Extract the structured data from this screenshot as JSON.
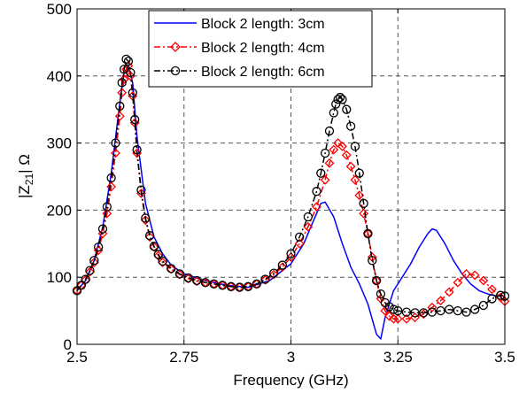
{
  "chart_data": {
    "type": "line",
    "xlabel": "Frequency (GHz)",
    "ylabel": "|Z21| Ω",
    "ylabel_main": "|Z",
    "ylabel_sub": "21",
    "ylabel_tail": "| Ω",
    "xlim": [
      2.5,
      3.5
    ],
    "ylim": [
      0,
      500
    ],
    "x_ticks": [
      2.5,
      2.75,
      3,
      3.25,
      3.5
    ],
    "x_tick_labels": [
      "2.5",
      "2.75",
      "3",
      "3.25",
      "3.5"
    ],
    "y_ticks": [
      0,
      100,
      200,
      300,
      400,
      500
    ],
    "y_tick_labels": [
      "0",
      "100",
      "200",
      "300",
      "400",
      "500"
    ],
    "grid": true,
    "legend_position": "top-center",
    "series": [
      {
        "name": "Block 2 length: 3cm",
        "color": "#0000ff",
        "line_style": "solid",
        "marker": "none",
        "x": [
          2.5,
          2.52,
          2.54,
          2.56,
          2.58,
          2.6,
          2.61,
          2.62,
          2.63,
          2.64,
          2.66,
          2.68,
          2.7,
          2.72,
          2.75,
          2.8,
          2.85,
          2.9,
          2.95,
          3.0,
          3.03,
          3.05,
          3.07,
          3.08,
          3.1,
          3.12,
          3.14,
          3.16,
          3.18,
          3.2,
          3.21,
          3.22,
          3.24,
          3.26,
          3.28,
          3.3,
          3.32,
          3.33,
          3.34,
          3.36,
          3.38,
          3.4,
          3.42,
          3.44,
          3.46,
          3.48,
          3.5
        ],
        "y": [
          80,
          95,
          125,
          175,
          255,
          360,
          405,
          415,
          390,
          310,
          210,
          160,
          135,
          118,
          105,
          95,
          88,
          85,
          95,
          120,
          150,
          180,
          210,
          212,
          190,
          150,
          115,
          90,
          60,
          15,
          8,
          40,
          80,
          100,
          120,
          145,
          165,
          172,
          170,
          150,
          125,
          105,
          90,
          80,
          75,
          72,
          72
        ]
      },
      {
        "name": "Block 2 length: 4cm",
        "color": "#ff0000",
        "line_style": "dashdot",
        "marker": "diamond",
        "x": [
          2.5,
          2.51,
          2.52,
          2.53,
          2.54,
          2.55,
          2.56,
          2.57,
          2.58,
          2.59,
          2.6,
          2.605,
          2.61,
          2.615,
          2.62,
          2.625,
          2.63,
          2.635,
          2.64,
          2.65,
          2.66,
          2.67,
          2.68,
          2.69,
          2.7,
          2.72,
          2.74,
          2.76,
          2.78,
          2.8,
          2.82,
          2.84,
          2.86,
          2.88,
          2.9,
          2.92,
          2.94,
          2.96,
          2.98,
          3.0,
          3.02,
          3.04,
          3.06,
          3.08,
          3.09,
          3.1,
          3.11,
          3.12,
          3.13,
          3.14,
          3.15,
          3.16,
          3.17,
          3.18,
          3.19,
          3.2,
          3.21,
          3.22,
          3.23,
          3.24,
          3.25,
          3.27,
          3.29,
          3.31,
          3.33,
          3.35,
          3.37,
          3.39,
          3.41,
          3.43,
          3.45,
          3.47,
          3.49,
          3.5
        ],
        "y": [
          80,
          88,
          96,
          108,
          122,
          140,
          165,
          195,
          235,
          285,
          340,
          375,
          395,
          410,
          415,
          400,
          370,
          330,
          285,
          225,
          185,
          160,
          145,
          132,
          122,
          112,
          104,
          98,
          94,
          92,
          90,
          88,
          86,
          85,
          86,
          90,
          96,
          104,
          115,
          130,
          150,
          175,
          205,
          245,
          270,
          290,
          300,
          295,
          282,
          265,
          245,
          222,
          195,
          165,
          130,
          95,
          68,
          50,
          42,
          38,
          38,
          38,
          40,
          45,
          55,
          65,
          78,
          92,
          105,
          103,
          95,
          82,
          70,
          64
        ]
      },
      {
        "name": "Block 2 length: 6cm",
        "color": "#000000",
        "line_style": "dashdot",
        "marker": "circle",
        "x": [
          2.5,
          2.51,
          2.52,
          2.53,
          2.54,
          2.55,
          2.56,
          2.57,
          2.58,
          2.59,
          2.6,
          2.605,
          2.61,
          2.615,
          2.62,
          2.625,
          2.63,
          2.635,
          2.64,
          2.65,
          2.66,
          2.67,
          2.68,
          2.69,
          2.7,
          2.72,
          2.74,
          2.76,
          2.78,
          2.8,
          2.82,
          2.84,
          2.86,
          2.88,
          2.9,
          2.92,
          2.94,
          2.96,
          2.98,
          3.0,
          3.02,
          3.04,
          3.06,
          3.07,
          3.08,
          3.09,
          3.1,
          3.105,
          3.11,
          3.115,
          3.12,
          3.13,
          3.14,
          3.15,
          3.16,
          3.17,
          3.18,
          3.19,
          3.2,
          3.21,
          3.22,
          3.23,
          3.24,
          3.25,
          3.27,
          3.29,
          3.31,
          3.33,
          3.35,
          3.37,
          3.39,
          3.41,
          3.43,
          3.45,
          3.47,
          3.49,
          3.5
        ],
        "y": [
          80,
          88,
          97,
          110,
          125,
          145,
          172,
          205,
          248,
          300,
          355,
          390,
          410,
          425,
          422,
          405,
          375,
          335,
          290,
          230,
          188,
          162,
          146,
          134,
          124,
          113,
          105,
          99,
          95,
          92,
          90,
          88,
          86,
          85,
          86,
          90,
          97,
          106,
          118,
          135,
          160,
          190,
          228,
          255,
          285,
          318,
          345,
          358,
          365,
          368,
          365,
          350,
          325,
          295,
          255,
          210,
          165,
          125,
          95,
          75,
          62,
          56,
          52,
          50,
          48,
          47,
          47,
          48,
          50,
          52,
          50,
          48,
          52,
          58,
          68,
          73,
          72
        ]
      }
    ]
  }
}
